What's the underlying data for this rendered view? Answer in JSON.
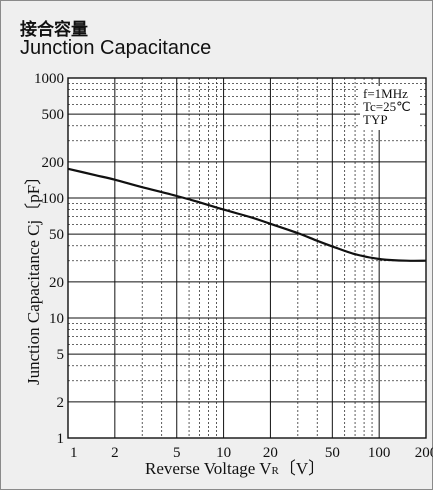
{
  "title": {
    "japanese": "接合容量",
    "english": "Junction Capacitance"
  },
  "chart_data": {
    "type": "line",
    "xscale": "log",
    "yscale": "log",
    "xlim": [
      1,
      200
    ],
    "ylim": [
      1,
      1000
    ],
    "grid": true,
    "xlabel": "Reverse Voltage V",
    "xlabel_sub": "R",
    "xlabel_unit": "〔V〕",
    "ylabel": "Junction Capacitance Cj〔pF〕",
    "x_ticks": [
      {
        "value": 1,
        "label": "1"
      },
      {
        "value": 2,
        "label": "2"
      },
      {
        "value": 5,
        "label": "5"
      },
      {
        "value": 10,
        "label": "10"
      },
      {
        "value": 20,
        "label": "20"
      },
      {
        "value": 50,
        "label": "50"
      },
      {
        "value": 100,
        "label": "100"
      },
      {
        "value": 200,
        "label": "200"
      }
    ],
    "y_ticks": [
      {
        "value": 1,
        "label": "1"
      },
      {
        "value": 2,
        "label": "2"
      },
      {
        "value": 5,
        "label": "5"
      },
      {
        "value": 10,
        "label": "10"
      },
      {
        "value": 20,
        "label": "20"
      },
      {
        "value": 50,
        "label": "50"
      },
      {
        "value": 100,
        "label": "100"
      },
      {
        "value": 200,
        "label": "200"
      },
      {
        "value": 500,
        "label": "500"
      },
      {
        "value": 1000,
        "label": "1000"
      }
    ],
    "x_major_grid": [
      1,
      2,
      5,
      10,
      20,
      50,
      100,
      200
    ],
    "x_minor_grid": [
      3,
      4,
      6,
      7,
      8,
      9,
      30,
      40,
      60,
      70,
      80,
      90
    ],
    "y_major_grid": [
      1,
      2,
      5,
      10,
      20,
      50,
      100,
      200,
      500,
      1000
    ],
    "y_minor_grid": [
      3,
      4,
      6,
      7,
      8,
      9,
      30,
      40,
      60,
      70,
      80,
      90,
      300,
      400,
      600,
      700,
      800,
      900
    ],
    "annotations": [
      "f=1MHz",
      "Tc=25℃",
      "TYP"
    ],
    "series": [
      {
        "x": [
          1,
          1.5,
          2,
          3,
          5,
          7,
          10,
          15,
          20,
          30,
          40,
          50,
          70,
          100,
          150,
          200
        ],
        "y": [
          175,
          155,
          142,
          123,
          104,
          92,
          80,
          69,
          61,
          51,
          44,
          39.5,
          34,
          31,
          30,
          30
        ]
      }
    ]
  }
}
